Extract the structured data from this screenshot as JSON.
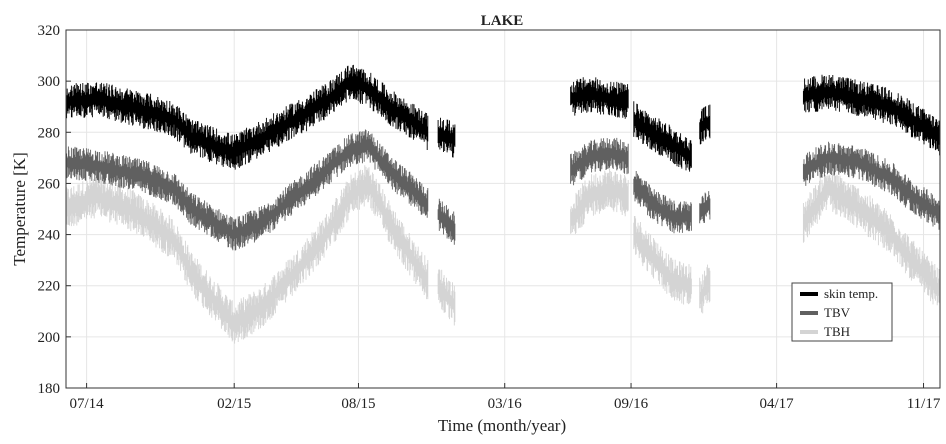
{
  "chart_data": {
    "type": "line",
    "title": "LAKE",
    "xlabel": "Time (month/year)",
    "ylabel": "Temperature [K]",
    "x_tick_labels": [
      "07/14",
      "02/15",
      "08/15",
      "03/16",
      "09/16",
      "04/17",
      "11/17"
    ],
    "x_tick_dates": [
      "2014-07-01",
      "2015-02-01",
      "2015-08-01",
      "2016-03-01",
      "2016-09-01",
      "2017-04-01",
      "2017-11-01"
    ],
    "xlim": [
      "2014-06-01",
      "2017-11-25"
    ],
    "ylim": [
      180,
      320
    ],
    "y_ticks": [
      180,
      200,
      220,
      240,
      260,
      280,
      300,
      320
    ],
    "grid": true,
    "legend_position": "bottom-right",
    "series": [
      {
        "name": "skin temp.",
        "color": "#000000",
        "band": 12,
        "segments": [
          [
            [
              "2014-06-01",
              292
            ],
            [
              "2014-07-15",
              293
            ],
            [
              "2014-09-01",
              290
            ],
            [
              "2014-10-01",
              288
            ],
            [
              "2014-11-05",
              285
            ],
            [
              "2014-12-01",
              278
            ],
            [
              "2015-01-01",
              275
            ],
            [
              "2015-02-01",
              272
            ],
            [
              "2015-03-15",
              278
            ],
            [
              "2015-05-01",
              285
            ],
            [
              "2015-06-15",
              292
            ],
            [
              "2015-07-20",
              300
            ],
            [
              "2015-08-15",
              297
            ],
            [
              "2015-09-15",
              290
            ],
            [
              "2015-10-15",
              285
            ],
            [
              "2015-11-10",
              280
            ]
          ],
          [
            [
              "2015-11-25",
              279
            ],
            [
              "2015-12-20",
              277
            ]
          ],
          [
            [
              "2016-06-05",
              293
            ],
            [
              "2016-07-01",
              295
            ],
            [
              "2016-08-01",
              293
            ],
            [
              "2016-08-28",
              292
            ]
          ],
          [
            [
              "2016-09-05",
              285
            ],
            [
              "2016-10-01",
              280
            ],
            [
              "2016-11-01",
              275
            ],
            [
              "2016-11-28",
              270
            ]
          ],
          [
            [
              "2016-12-10",
              282
            ],
            [
              "2016-12-25",
              284
            ]
          ],
          [
            [
              "2017-05-10",
              294
            ],
            [
              "2017-06-15",
              296
            ],
            [
              "2017-08-01",
              293
            ],
            [
              "2017-09-15",
              290
            ],
            [
              "2017-10-15",
              285
            ],
            [
              "2017-11-25",
              278
            ]
          ]
        ]
      },
      {
        "name": "TBV",
        "color": "#606060",
        "band": 11,
        "segments": [
          [
            [
              "2014-06-01",
              268
            ],
            [
              "2014-07-15",
              267
            ],
            [
              "2014-09-01",
              264
            ],
            [
              "2014-10-01",
              262
            ],
            [
              "2014-11-05",
              258
            ],
            [
              "2014-12-01",
              250
            ],
            [
              "2015-01-01",
              245
            ],
            [
              "2015-02-01",
              240
            ],
            [
              "2015-03-15",
              245
            ],
            [
              "2015-05-01",
              255
            ],
            [
              "2015-06-15",
              265
            ],
            [
              "2015-07-20",
              273
            ],
            [
              "2015-08-15",
              275
            ],
            [
              "2015-09-15",
              265
            ],
            [
              "2015-10-15",
              258
            ],
            [
              "2015-11-10",
              252
            ]
          ],
          [
            [
              "2015-11-25",
              248
            ],
            [
              "2015-12-20",
              242
            ]
          ],
          [
            [
              "2016-06-05",
              265
            ],
            [
              "2016-07-01",
              270
            ],
            [
              "2016-08-01",
              272
            ],
            [
              "2016-08-28",
              270
            ]
          ],
          [
            [
              "2016-09-05",
              260
            ],
            [
              "2016-10-01",
              252
            ],
            [
              "2016-11-01",
              247
            ],
            [
              "2016-11-28",
              247
            ]
          ],
          [
            [
              "2016-12-10",
              248
            ],
            [
              "2016-12-25",
              252
            ]
          ],
          [
            [
              "2017-05-10",
              265
            ],
            [
              "2017-06-15",
              270
            ],
            [
              "2017-08-01",
              268
            ],
            [
              "2017-09-15",
              262
            ],
            [
              "2017-10-15",
              255
            ],
            [
              "2017-11-25",
              248
            ]
          ]
        ]
      },
      {
        "name": "TBH",
        "color": "#d4d4d4",
        "band": 14,
        "segments": [
          [
            [
              "2014-06-01",
              250
            ],
            [
              "2014-07-15",
              255
            ],
            [
              "2014-09-01",
              250
            ],
            [
              "2014-10-01",
              245
            ],
            [
              "2014-11-05",
              238
            ],
            [
              "2014-12-01",
              225
            ],
            [
              "2015-01-01",
              215
            ],
            [
              "2015-02-01",
              205
            ],
            [
              "2015-03-15",
              212
            ],
            [
              "2015-05-01",
              225
            ],
            [
              "2015-06-15",
              240
            ],
            [
              "2015-07-20",
              255
            ],
            [
              "2015-08-15",
              260
            ],
            [
              "2015-09-15",
              245
            ],
            [
              "2015-10-15",
              232
            ],
            [
              "2015-11-10",
              222
            ]
          ],
          [
            [
              "2015-11-25",
              220
            ],
            [
              "2015-12-20",
              212
            ]
          ],
          [
            [
              "2016-06-05",
              245
            ],
            [
              "2016-07-01",
              255
            ],
            [
              "2016-08-01",
              258
            ],
            [
              "2016-08-28",
              255
            ]
          ],
          [
            [
              "2016-09-05",
              240
            ],
            [
              "2016-10-01",
              232
            ],
            [
              "2016-11-01",
              222
            ],
            [
              "2016-11-28",
              220
            ]
          ],
          [
            [
              "2016-12-10",
              215
            ],
            [
              "2016-12-25",
              222
            ]
          ],
          [
            [
              "2017-05-10",
              245
            ],
            [
              "2017-06-15",
              258
            ],
            [
              "2017-08-01",
              250
            ],
            [
              "2017-09-15",
              240
            ],
            [
              "2017-10-15",
              230
            ],
            [
              "2017-11-25",
              218
            ]
          ]
        ]
      }
    ]
  }
}
